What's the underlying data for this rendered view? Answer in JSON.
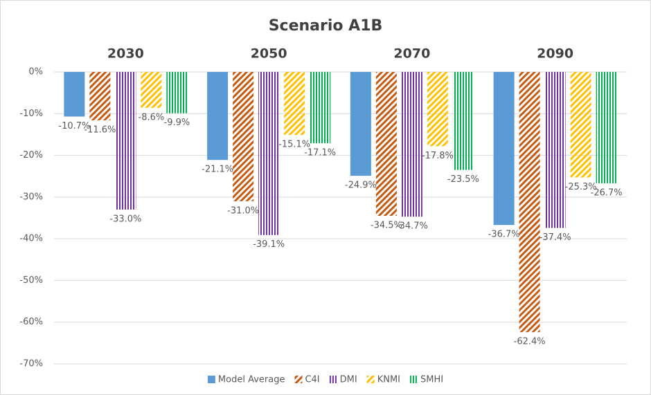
{
  "chart_data": {
    "type": "bar",
    "title": "Scenario A1B",
    "categories": [
      "2030",
      "2050",
      "2070",
      "2090"
    ],
    "ylim": [
      -70,
      0
    ],
    "yticks": [
      {
        "value": 0,
        "label": "0%"
      },
      {
        "value": -10,
        "label": "-10%"
      },
      {
        "value": -20,
        "label": "-20%"
      },
      {
        "value": -30,
        "label": "-30%"
      },
      {
        "value": -40,
        "label": "-40%"
      },
      {
        "value": -50,
        "label": "-50%"
      },
      {
        "value": -60,
        "label": "-60%"
      },
      {
        "value": -70,
        "label": "-70%"
      }
    ],
    "grid": true,
    "legend": "bottom",
    "series": [
      {
        "name": "Model Average",
        "color": "#5b9bd5",
        "pattern": "solid",
        "values": [
          -10.7,
          -21.1,
          -24.9,
          -36.7
        ],
        "value_labels": [
          "-10.7%",
          "-21.1%",
          "-24.9%",
          "-36.7%"
        ]
      },
      {
        "name": "C4I",
        "color": "#c55a11",
        "pattern": "diagonal",
        "values": [
          -11.6,
          -31.0,
          -34.5,
          -62.4
        ],
        "value_labels": [
          "-11.6%",
          "-31.0%",
          "-34.5%",
          "-62.4%"
        ]
      },
      {
        "name": "DMI",
        "color": "#7030a0",
        "pattern": "vertical",
        "values": [
          -33.0,
          -39.1,
          -34.7,
          -37.4
        ],
        "value_labels": [
          "-33.0%",
          "-39.1%",
          "-34.7%",
          "-37.4%"
        ]
      },
      {
        "name": "KNMI",
        "color": "#ffc000",
        "pattern": "diagonal",
        "values": [
          -8.6,
          -15.1,
          -17.8,
          -25.3
        ],
        "value_labels": [
          "-8.6%",
          "-15.1%",
          "-17.8%",
          "-25.3%"
        ]
      },
      {
        "name": "SMHI",
        "color": "#00b050",
        "pattern": "vertical",
        "values": [
          -9.9,
          -17.1,
          -23.5,
          -26.7
        ],
        "value_labels": [
          "-9.9%",
          "-17.1%",
          "-23.5%",
          "-26.7%"
        ]
      }
    ]
  }
}
